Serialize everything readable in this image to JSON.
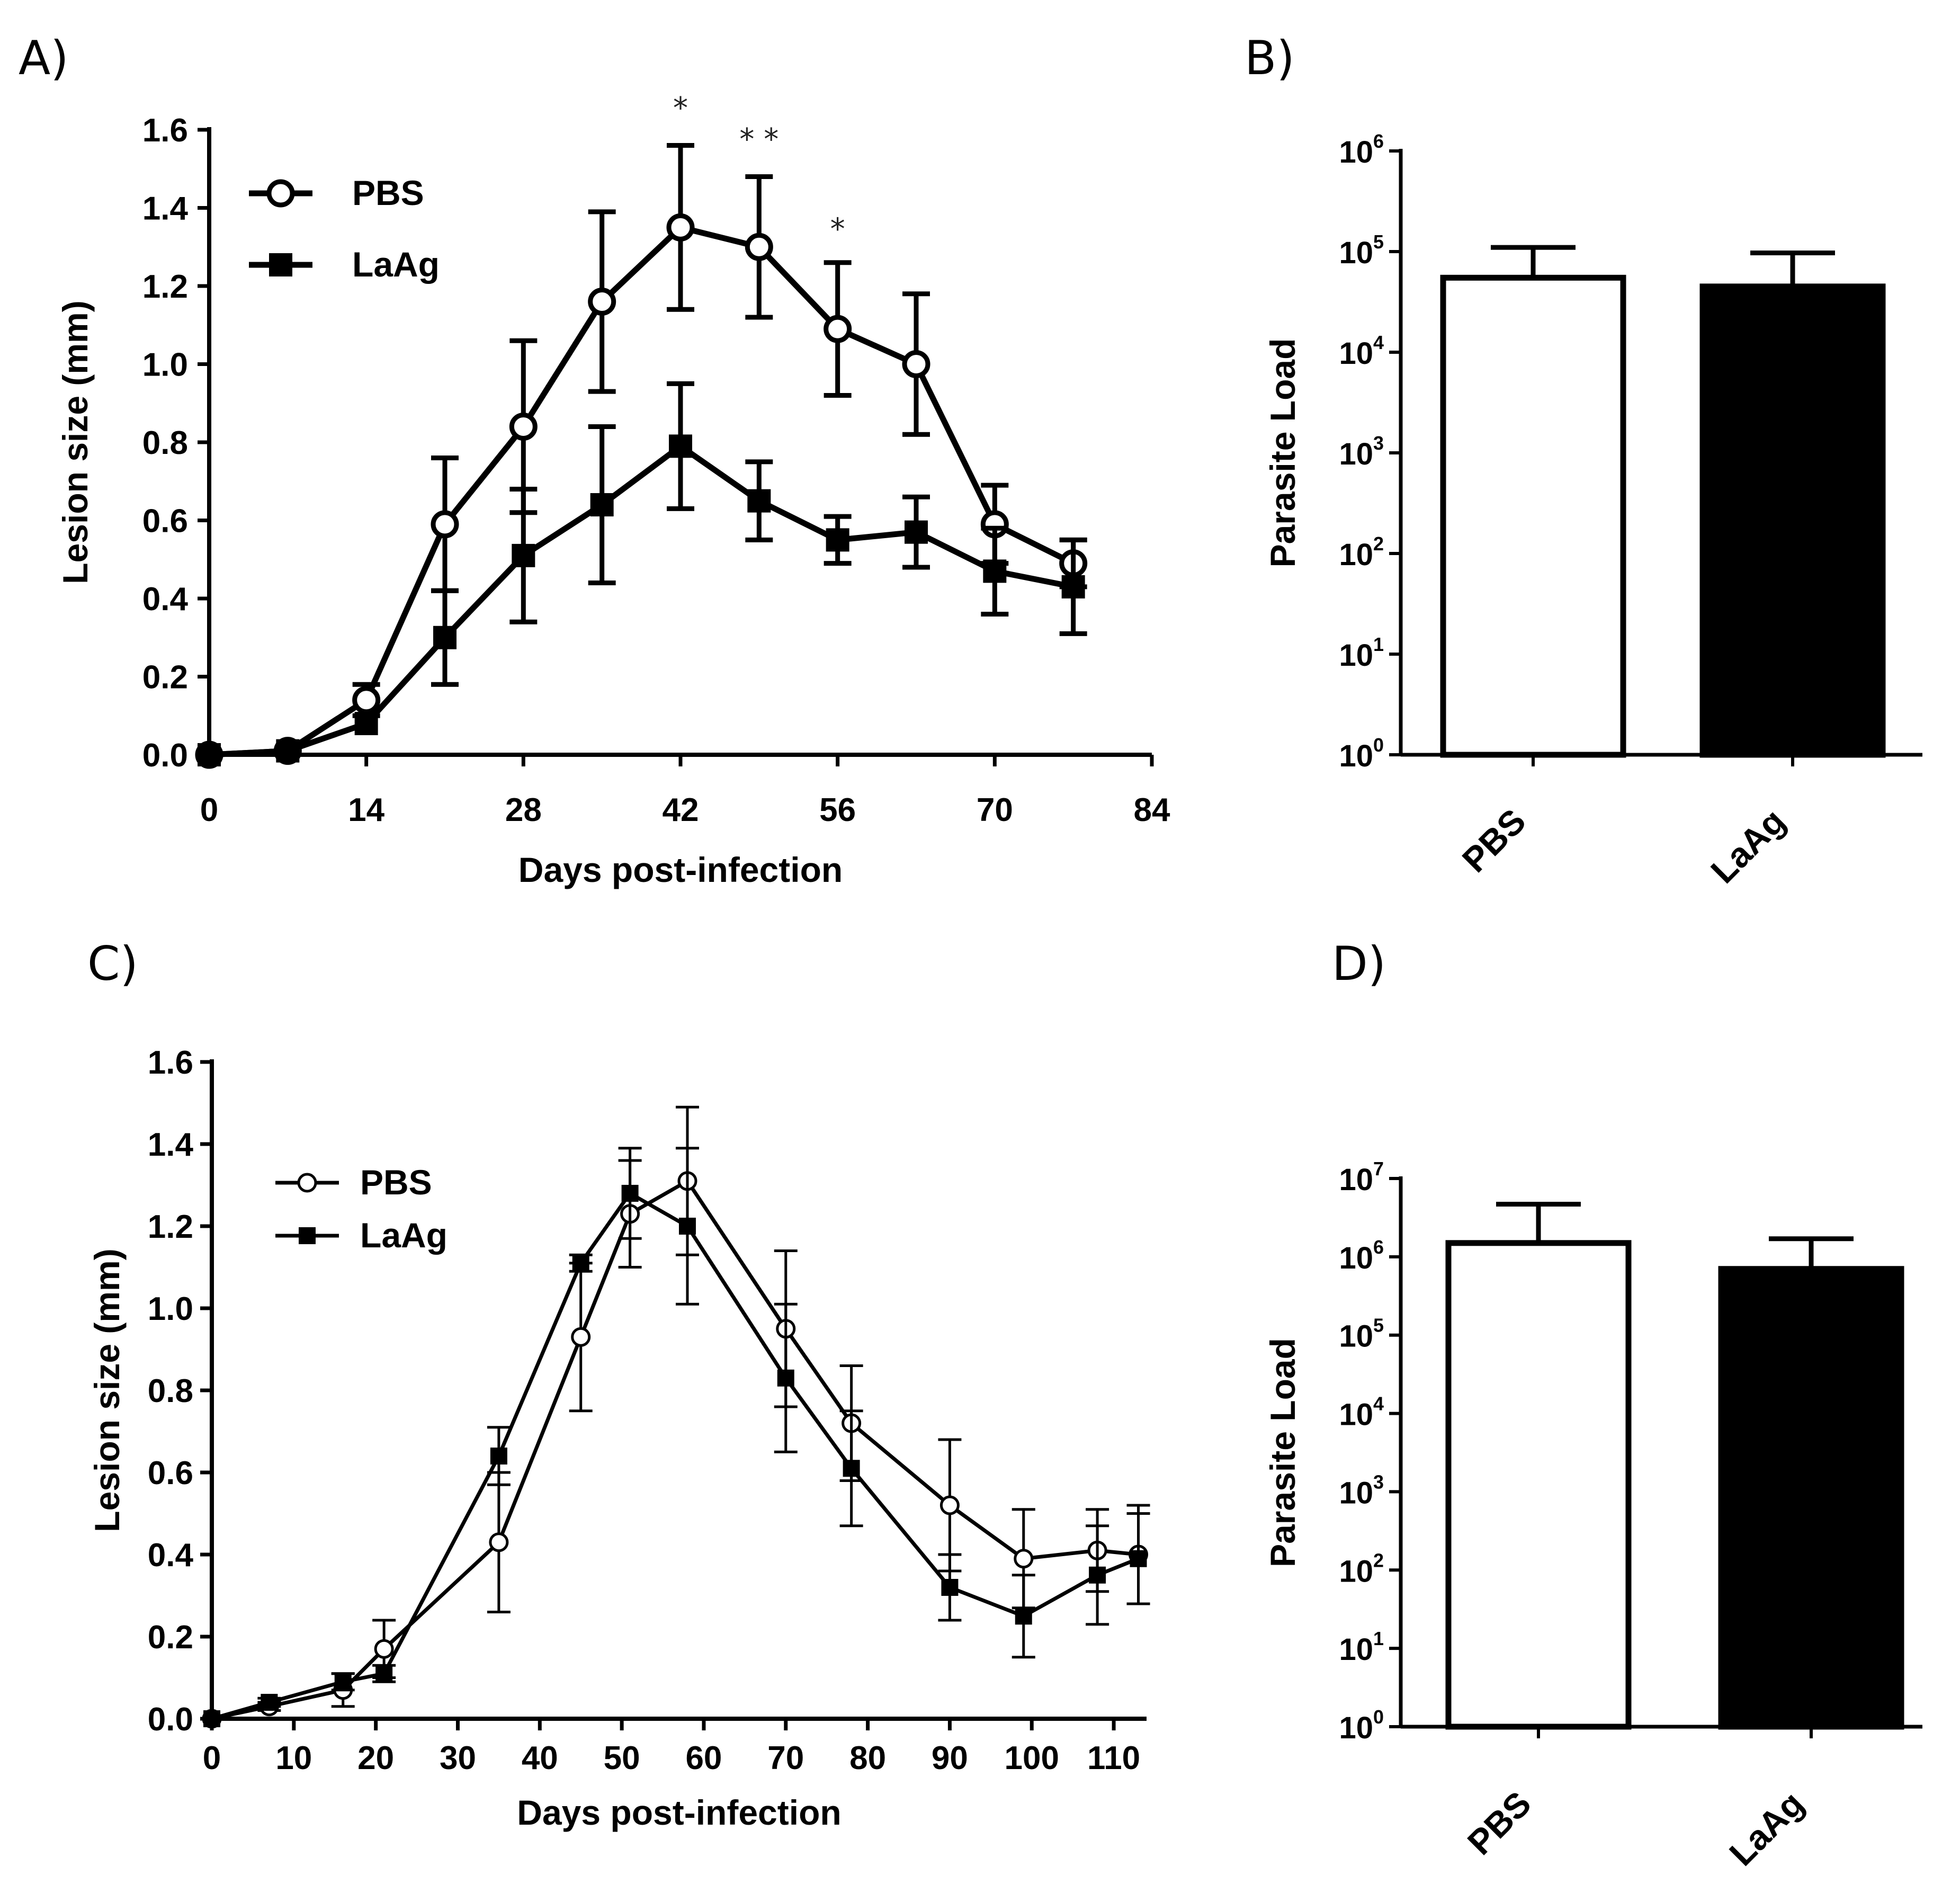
{
  "chart_data": [
    {
      "panel": "A)",
      "type": "line",
      "xlabel": "Days post-infection",
      "ylabel": "Lesion size (mm)",
      "xlim": [
        0,
        84
      ],
      "ylim": [
        0,
        1.6
      ],
      "x_ticks": [
        0,
        14,
        28,
        42,
        56,
        70,
        84
      ],
      "y_ticks": [
        "0.0",
        "0.2",
        "0.4",
        "0.6",
        "0.8",
        "1.0",
        "1.2",
        "1.4",
        "1.6"
      ],
      "legend": [
        "PBS",
        "LaAg"
      ],
      "series": [
        {
          "name": "PBS",
          "marker": "open-circle",
          "x": [
            0,
            7,
            14,
            21,
            28,
            35,
            42,
            49,
            56,
            63,
            70,
            77
          ],
          "y": [
            0.0,
            0.01,
            0.14,
            0.59,
            0.84,
            1.16,
            1.35,
            1.3,
            1.09,
            1.0,
            0.59,
            0.49
          ],
          "err": [
            0.0,
            0.0,
            0.04,
            0.17,
            0.22,
            0.23,
            0.21,
            0.18,
            0.17,
            0.18,
            0.1,
            0.06
          ]
        },
        {
          "name": "LaAg",
          "marker": "filled-square",
          "x": [
            0,
            7,
            14,
            21,
            28,
            35,
            42,
            49,
            56,
            63,
            70,
            77
          ],
          "y": [
            0.0,
            0.01,
            0.08,
            0.3,
            0.51,
            0.64,
            0.79,
            0.65,
            0.55,
            0.57,
            0.47,
            0.43
          ],
          "err": [
            0.0,
            0.0,
            0.0,
            0.12,
            0.17,
            0.2,
            0.16,
            0.1,
            0.06,
            0.09,
            0.11,
            0.12
          ]
        }
      ],
      "annotations": [
        {
          "x": 42,
          "y": 1.63,
          "text": "*"
        },
        {
          "x": 49,
          "y": 1.55,
          "text": "* *"
        },
        {
          "x": 56,
          "y": 1.32,
          "text": "*"
        }
      ]
    },
    {
      "panel": "B)",
      "type": "bar",
      "scale": "log",
      "ylabel": "Parasite Load",
      "categories": [
        "PBS",
        "LaAg"
      ],
      "values": [
        55000,
        45000
      ],
      "err_upper": [
        110000,
        97000
      ],
      "fills": [
        "#ffffff",
        "#000000"
      ],
      "exponents": [
        0,
        1,
        2,
        3,
        4,
        5,
        6
      ],
      "ylim": [
        1,
        1000000
      ]
    },
    {
      "panel": "C)",
      "type": "line",
      "xlabel": "Days post-infection",
      "ylabel": "Lesion size (mm)",
      "xlim": [
        0,
        114
      ],
      "ylim": [
        0,
        1.6
      ],
      "x_ticks": [
        0,
        10,
        20,
        30,
        40,
        50,
        60,
        70,
        80,
        90,
        100,
        110
      ],
      "y_ticks": [
        "0.0",
        "0.2",
        "0.4",
        "0.6",
        "0.8",
        "1.0",
        "1.2",
        "1.4",
        "1.6"
      ],
      "legend": [
        "PBS",
        "LaAg"
      ],
      "series": [
        {
          "name": "PBS",
          "marker": "open-circle",
          "x": [
            0,
            7,
            16,
            21,
            35,
            45,
            51,
            58,
            70,
            78,
            90,
            99,
            108,
            113
          ],
          "y": [
            0.0,
            0.03,
            0.07,
            0.17,
            0.43,
            0.93,
            1.23,
            1.31,
            0.95,
            0.72,
            0.52,
            0.39,
            0.41,
            0.4
          ],
          "err": [
            0.0,
            0.01,
            0.04,
            0.07,
            0.17,
            0.18,
            0.13,
            0.18,
            0.19,
            0.14,
            0.16,
            0.12,
            0.1,
            0.12
          ]
        },
        {
          "name": "LaAg",
          "marker": "filled-square",
          "x": [
            0,
            7,
            16,
            21,
            35,
            45,
            51,
            58,
            70,
            78,
            90,
            99,
            108,
            113
          ],
          "y": [
            0.0,
            0.04,
            0.09,
            0.11,
            0.64,
            1.11,
            1.28,
            1.2,
            0.83,
            0.61,
            0.32,
            0.25,
            0.35,
            0.39
          ],
          "err": [
            0.0,
            0.01,
            0.02,
            0.02,
            0.07,
            0.02,
            0.11,
            0.19,
            0.18,
            0.14,
            0.08,
            0.1,
            0.12,
            0.11
          ]
        }
      ]
    },
    {
      "panel": "D)",
      "type": "bar",
      "scale": "log",
      "ylabel": "Parasite Load",
      "categories": [
        "PBS",
        "LaAg"
      ],
      "values": [
        1500000,
        700000
      ],
      "err_upper": [
        4700000,
        1700000
      ],
      "fills": [
        "#ffffff",
        "#000000"
      ],
      "exponents": [
        0,
        1,
        2,
        3,
        4,
        5,
        6,
        7
      ],
      "ylim": [
        1,
        10000000
      ]
    }
  ]
}
